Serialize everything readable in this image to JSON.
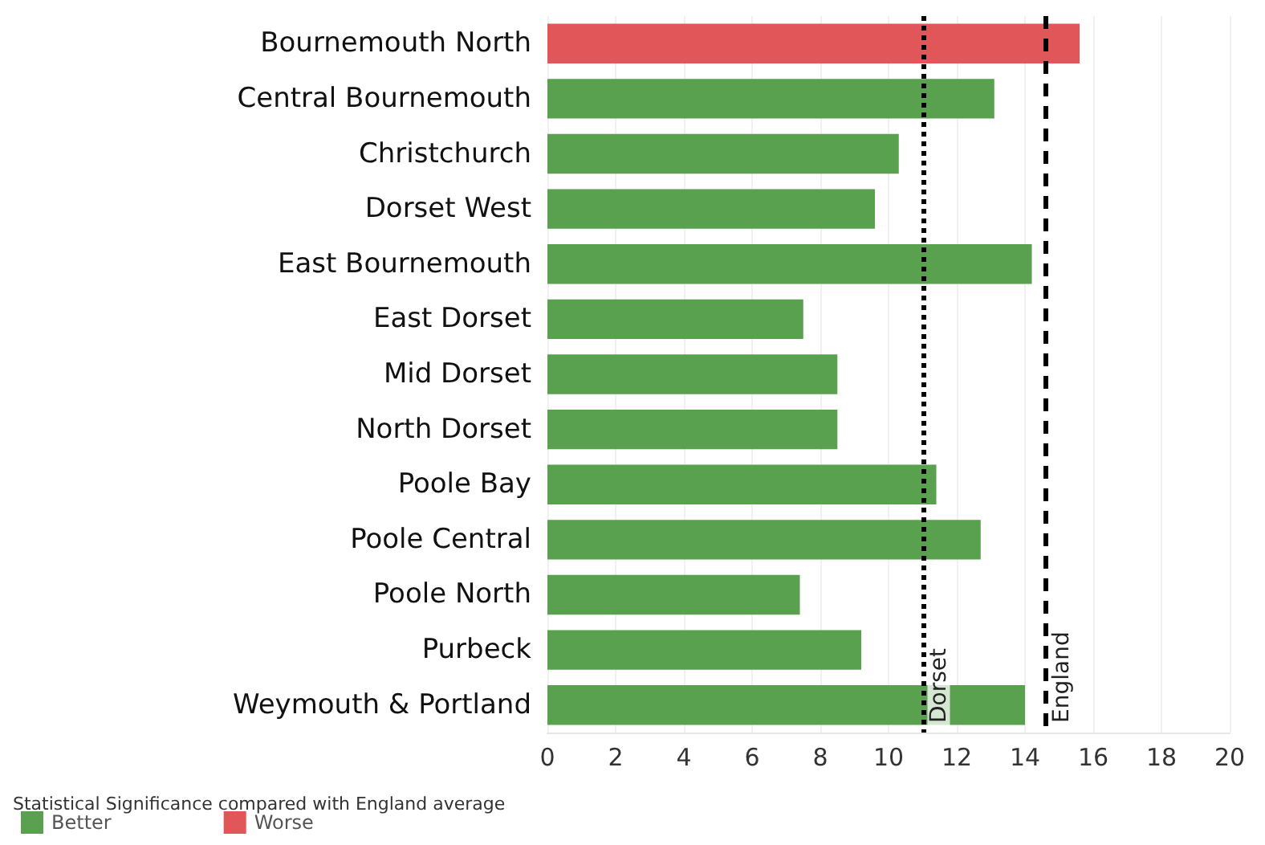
{
  "chart_data": {
    "type": "bar",
    "orientation": "horizontal",
    "stacked": true,
    "categories": [
      "Bournemouth North",
      "Central Bournemouth",
      "Christchurch",
      "Dorset West",
      "East Bournemouth",
      "East Dorset",
      "Mid Dorset",
      "North Dorset",
      "Poole Bay",
      "Poole Central",
      "Poole North",
      "Purbeck",
      "Weymouth & Portland"
    ],
    "series": [
      {
        "name": "Better",
        "color": "#59a14f",
        "values": [
          null,
          13.1,
          10.3,
          9.6,
          14.2,
          7.5,
          8.5,
          8.5,
          11.4,
          12.7,
          7.4,
          9.2,
          14.0
        ]
      },
      {
        "name": "Worse",
        "color": "#e15759",
        "values": [
          15.6,
          null,
          null,
          null,
          null,
          null,
          null,
          null,
          null,
          null,
          null,
          null,
          null
        ]
      }
    ],
    "xlim": [
      0,
      20
    ],
    "xticks": [
      0,
      2,
      4,
      6,
      8,
      10,
      12,
      14,
      16,
      18,
      20
    ],
    "grid": "x",
    "ref_lines": [
      {
        "axis": "x",
        "value": 11.0,
        "label": "Dorset",
        "line_style": "dotted",
        "color": "#000000"
      },
      {
        "axis": "x",
        "value": 14.6,
        "label": "England",
        "line_style": "dashed",
        "color": "#000000"
      }
    ],
    "legend": "bottom left",
    "legend_title": "Statistical Significance compared with England average"
  }
}
